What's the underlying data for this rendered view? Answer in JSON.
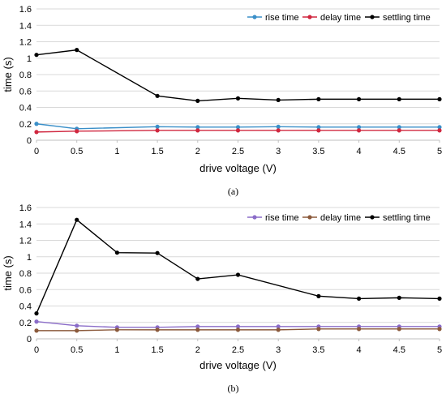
{
  "chart_data": [
    {
      "type": "line",
      "caption": "(a)",
      "xlabel": "drive voltage (V)",
      "ylabel": "time (s)",
      "xlim": [
        0,
        5
      ],
      "ylim": [
        0,
        1.6
      ],
      "xticks": [
        "0",
        "0.5",
        "1",
        "1.5",
        "2",
        "2.5",
        "3",
        "3.5",
        "4",
        "4.5",
        "5"
      ],
      "yticks": [
        "0",
        "0.2",
        "0.4",
        "0.6",
        "0.8",
        "1",
        "1.2",
        "1.4",
        "1.6"
      ],
      "grid": true,
      "legend_position": "top-right",
      "series": [
        {
          "name": "rise time",
          "color": "#3a8fc8",
          "points": [
            [
              0,
              0.2
            ],
            [
              0.5,
              0.14
            ],
            [
              1.5,
              0.165
            ],
            [
              2,
              0.16
            ],
            [
              2.5,
              0.16
            ],
            [
              3,
              0.165
            ],
            [
              3.5,
              0.16
            ],
            [
              4,
              0.16
            ],
            [
              4.5,
              0.16
            ],
            [
              5,
              0.16
            ]
          ]
        },
        {
          "name": "delay time",
          "color": "#d0273f",
          "points": [
            [
              0,
              0.1
            ],
            [
              0.5,
              0.11
            ],
            [
              1.5,
              0.12
            ],
            [
              2,
              0.12
            ],
            [
              2.5,
              0.12
            ],
            [
              3,
              0.12
            ],
            [
              3.5,
              0.12
            ],
            [
              4,
              0.12
            ],
            [
              4.5,
              0.12
            ],
            [
              5,
              0.12
            ]
          ]
        },
        {
          "name": "settling time",
          "color": "#000000",
          "points": [
            [
              0,
              1.04
            ],
            [
              0.5,
              1.1
            ],
            [
              1.5,
              0.54
            ],
            [
              2,
              0.48
            ],
            [
              2.5,
              0.51
            ],
            [
              3,
              0.49
            ],
            [
              3.5,
              0.5
            ],
            [
              4,
              0.5
            ],
            [
              4.5,
              0.5
            ],
            [
              5,
              0.5
            ]
          ]
        }
      ]
    },
    {
      "type": "line",
      "caption": "(b)",
      "xlabel": "drive voltage (V)",
      "ylabel": "time (s)",
      "xlim": [
        0,
        5
      ],
      "ylim": [
        0,
        1.6
      ],
      "xticks": [
        "0",
        "0.5",
        "1",
        "1.5",
        "2",
        "2.5",
        "3",
        "3.5",
        "4",
        "4.5",
        "5"
      ],
      "yticks": [
        "0",
        "0.2",
        "0.4",
        "0.6",
        "0.8",
        "1",
        "1.2",
        "1.4",
        "1.6"
      ],
      "grid": true,
      "legend_position": "top-right",
      "series": [
        {
          "name": "rise time",
          "color": "#8a6cc8",
          "points": [
            [
              0,
              0.21
            ],
            [
              0.5,
              0.16
            ],
            [
              1,
              0.14
            ],
            [
              1.5,
              0.14
            ],
            [
              2,
              0.15
            ],
            [
              2.5,
              0.15
            ],
            [
              3,
              0.15
            ],
            [
              3.5,
              0.15
            ],
            [
              4,
              0.15
            ],
            [
              4.5,
              0.15
            ],
            [
              5,
              0.15
            ]
          ]
        },
        {
          "name": "delay time",
          "color": "#8b5a3c",
          "points": [
            [
              0,
              0.1
            ],
            [
              0.5,
              0.1
            ],
            [
              1,
              0.11
            ],
            [
              1.5,
              0.11
            ],
            [
              2,
              0.11
            ],
            [
              2.5,
              0.11
            ],
            [
              3,
              0.11
            ],
            [
              3.5,
              0.12
            ],
            [
              4,
              0.12
            ],
            [
              4.5,
              0.12
            ],
            [
              5,
              0.12
            ]
          ]
        },
        {
          "name": "settling time",
          "color": "#000000",
          "points": [
            [
              0,
              0.31
            ],
            [
              0.5,
              1.45
            ],
            [
              1,
              1.05
            ],
            [
              1.5,
              1.045
            ],
            [
              2,
              0.73
            ],
            [
              2.5,
              0.78
            ],
            [
              3.5,
              0.52
            ],
            [
              4,
              0.49
            ],
            [
              4.5,
              0.5
            ],
            [
              5,
              0.49
            ]
          ]
        }
      ]
    }
  ]
}
